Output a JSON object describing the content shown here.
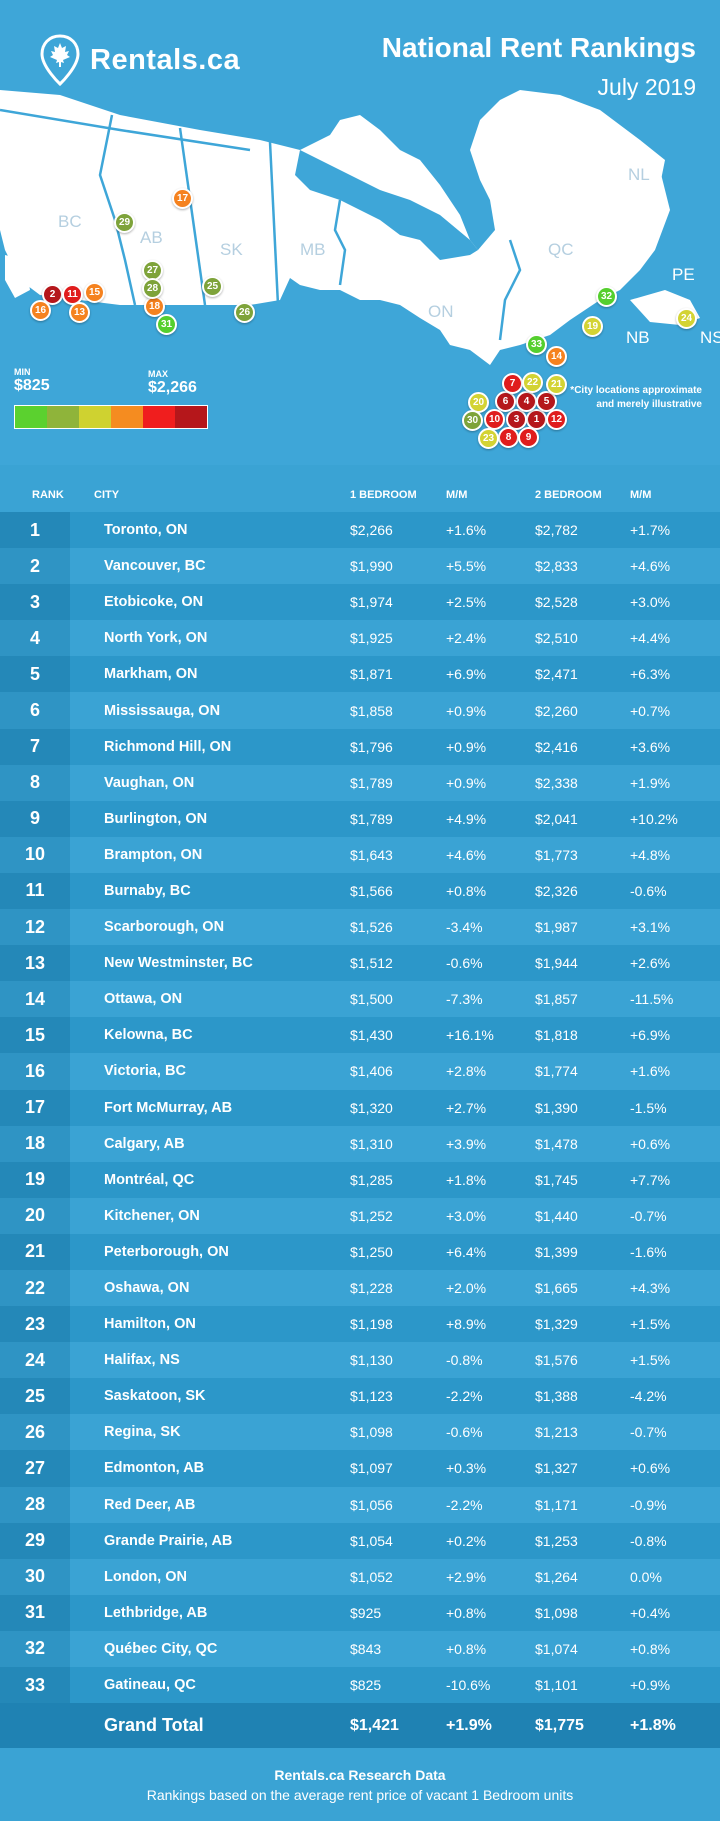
{
  "header": {
    "brand": "Rentals.ca",
    "title": "National Rent Rankings",
    "subtitle": "July 2019"
  },
  "map": {
    "provinces": [
      "BC",
      "AB",
      "SK",
      "MB",
      "ON",
      "QC",
      "NL",
      "PE",
      "NB",
      "NS"
    ],
    "note_line1": "*City locations approximate",
    "note_line2": "and merely illustrative"
  },
  "legend": {
    "min_label": "MIN",
    "min_value": "$825",
    "max_label": "MAX",
    "max_value": "$2,266",
    "colors": [
      "#5bd12f",
      "#8fb43a",
      "#cfd230",
      "#f58c20",
      "#f01e1e",
      "#b5171b"
    ]
  },
  "pin_colors": {
    "darkred": "#b5171b",
    "red": "#e01d1d",
    "orange": "#f5821f",
    "yellow": "#d3d334",
    "olive": "#7ea33a",
    "green": "#55cf2e"
  },
  "pins": [
    {
      "n": "1",
      "c": "darkred"
    },
    {
      "n": "2",
      "c": "darkred"
    },
    {
      "n": "3",
      "c": "darkred"
    },
    {
      "n": "4",
      "c": "darkred"
    },
    {
      "n": "5",
      "c": "darkred"
    },
    {
      "n": "6",
      "c": "darkred"
    },
    {
      "n": "7",
      "c": "red"
    },
    {
      "n": "8",
      "c": "red"
    },
    {
      "n": "9",
      "c": "red"
    },
    {
      "n": "10",
      "c": "red"
    },
    {
      "n": "11",
      "c": "red"
    },
    {
      "n": "12",
      "c": "red"
    },
    {
      "n": "13",
      "c": "orange"
    },
    {
      "n": "14",
      "c": "orange"
    },
    {
      "n": "15",
      "c": "orange"
    },
    {
      "n": "16",
      "c": "orange"
    },
    {
      "n": "17",
      "c": "orange"
    },
    {
      "n": "18",
      "c": "orange"
    },
    {
      "n": "19",
      "c": "yellow"
    },
    {
      "n": "20",
      "c": "yellow"
    },
    {
      "n": "21",
      "c": "yellow"
    },
    {
      "n": "22",
      "c": "yellow"
    },
    {
      "n": "23",
      "c": "yellow"
    },
    {
      "n": "24",
      "c": "yellow"
    },
    {
      "n": "25",
      "c": "olive"
    },
    {
      "n": "26",
      "c": "olive"
    },
    {
      "n": "27",
      "c": "olive"
    },
    {
      "n": "28",
      "c": "olive"
    },
    {
      "n": "29",
      "c": "olive"
    },
    {
      "n": "30",
      "c": "olive"
    },
    {
      "n": "31",
      "c": "green"
    },
    {
      "n": "32",
      "c": "green"
    },
    {
      "n": "33",
      "c": "green"
    }
  ],
  "table": {
    "headers": [
      "RANK",
      "CITY",
      "1 BEDROOM",
      "M/M",
      "2 BEDROOM",
      "M/M"
    ],
    "rows": [
      [
        "1",
        "Toronto, ON",
        "$2,266",
        "+1.6%",
        "$2,782",
        "+1.7%"
      ],
      [
        "2",
        "Vancouver, BC",
        "$1,990",
        "+5.5%",
        "$2,833",
        "+4.6%"
      ],
      [
        "3",
        "Etobicoke, ON",
        "$1,974",
        "+2.5%",
        "$2,528",
        "+3.0%"
      ],
      [
        "4",
        "North York, ON",
        "$1,925",
        "+2.4%",
        "$2,510",
        "+4.4%"
      ],
      [
        "5",
        "Markham, ON",
        "$1,871",
        "+6.9%",
        "$2,471",
        "+6.3%"
      ],
      [
        "6",
        "Mississauga, ON",
        "$1,858",
        "+0.9%",
        "$2,260",
        "+0.7%"
      ],
      [
        "7",
        "Richmond Hill, ON",
        "$1,796",
        "+0.9%",
        "$2,416",
        "+3.6%"
      ],
      [
        "8",
        "Vaughan, ON",
        "$1,789",
        "+0.9%",
        "$2,338",
        "+1.9%"
      ],
      [
        "9",
        "Burlington, ON",
        "$1,789",
        "+4.9%",
        "$2,041",
        "+10.2%"
      ],
      [
        "10",
        "Brampton, ON",
        "$1,643",
        "+4.6%",
        "$1,773",
        "+4.8%"
      ],
      [
        "11",
        "Burnaby, BC",
        "$1,566",
        "+0.8%",
        "$2,326",
        "-0.6%"
      ],
      [
        "12",
        "Scarborough, ON",
        "$1,526",
        "-3.4%",
        "$1,987",
        "+3.1%"
      ],
      [
        "13",
        "New Westminster, BC",
        "$1,512",
        "-0.6%",
        "$1,944",
        "+2.6%"
      ],
      [
        "14",
        "Ottawa, ON",
        "$1,500",
        "-7.3%",
        "$1,857",
        "-11.5%"
      ],
      [
        "15",
        "Kelowna, BC",
        "$1,430",
        "+16.1%",
        "$1,818",
        "+6.9%"
      ],
      [
        "16",
        "Victoria, BC",
        "$1,406",
        "+2.8%",
        "$1,774",
        "+1.6%"
      ],
      [
        "17",
        "Fort McMurray, AB",
        "$1,320",
        "+2.7%",
        "$1,390",
        "-1.5%"
      ],
      [
        "18",
        "Calgary, AB",
        "$1,310",
        "+3.9%",
        "$1,478",
        "+0.6%"
      ],
      [
        "19",
        "Montréal, QC",
        "$1,285",
        "+1.8%",
        "$1,745",
        "+7.7%"
      ],
      [
        "20",
        "Kitchener, ON",
        "$1,252",
        "+3.0%",
        "$1,440",
        "-0.7%"
      ],
      [
        "21",
        "Peterborough, ON",
        "$1,250",
        "+6.4%",
        "$1,399",
        "-1.6%"
      ],
      [
        "22",
        "Oshawa, ON",
        "$1,228",
        "+2.0%",
        "$1,665",
        "+4.3%"
      ],
      [
        "23",
        "Hamilton, ON",
        "$1,198",
        "+8.9%",
        "$1,329",
        "+1.5%"
      ],
      [
        "24",
        "Halifax, NS",
        "$1,130",
        "-0.8%",
        "$1,576",
        "+1.5%"
      ],
      [
        "25",
        "Saskatoon, SK",
        "$1,123",
        "-2.2%",
        "$1,388",
        "-4.2%"
      ],
      [
        "26",
        "Regina, SK",
        "$1,098",
        "-0.6%",
        "$1,213",
        "-0.7%"
      ],
      [
        "27",
        "Edmonton, AB",
        "$1,097",
        "+0.3%",
        "$1,327",
        "+0.6%"
      ],
      [
        "28",
        "Red Deer, AB",
        "$1,056",
        "-2.2%",
        "$1,171",
        "-0.9%"
      ],
      [
        "29",
        "Grande Prairie, AB",
        "$1,054",
        "+0.2%",
        "$1,253",
        "-0.8%"
      ],
      [
        "30",
        "London, ON",
        "$1,052",
        "+2.9%",
        "$1,264",
        "0.0%"
      ],
      [
        "31",
        "Lethbridge, AB",
        "$925",
        "+0.8%",
        "$1,098",
        "+0.4%"
      ],
      [
        "32",
        "Québec City, QC",
        "$843",
        "+0.8%",
        "$1,074",
        "+0.8%"
      ],
      [
        "33",
        "Gatineau, QC",
        "$825",
        "-10.6%",
        "$1,101",
        "+0.9%"
      ]
    ],
    "total": {
      "label": "Grand Total",
      "one_bed": "$1,421",
      "one_mm": "+1.9%",
      "two_bed": "$1,775",
      "two_mm": "+1.8%"
    }
  },
  "footer": {
    "line1": "Rentals.ca Research Data",
    "line2": "Rankings based on the average rent price of vacant 1 Bedroom units"
  }
}
